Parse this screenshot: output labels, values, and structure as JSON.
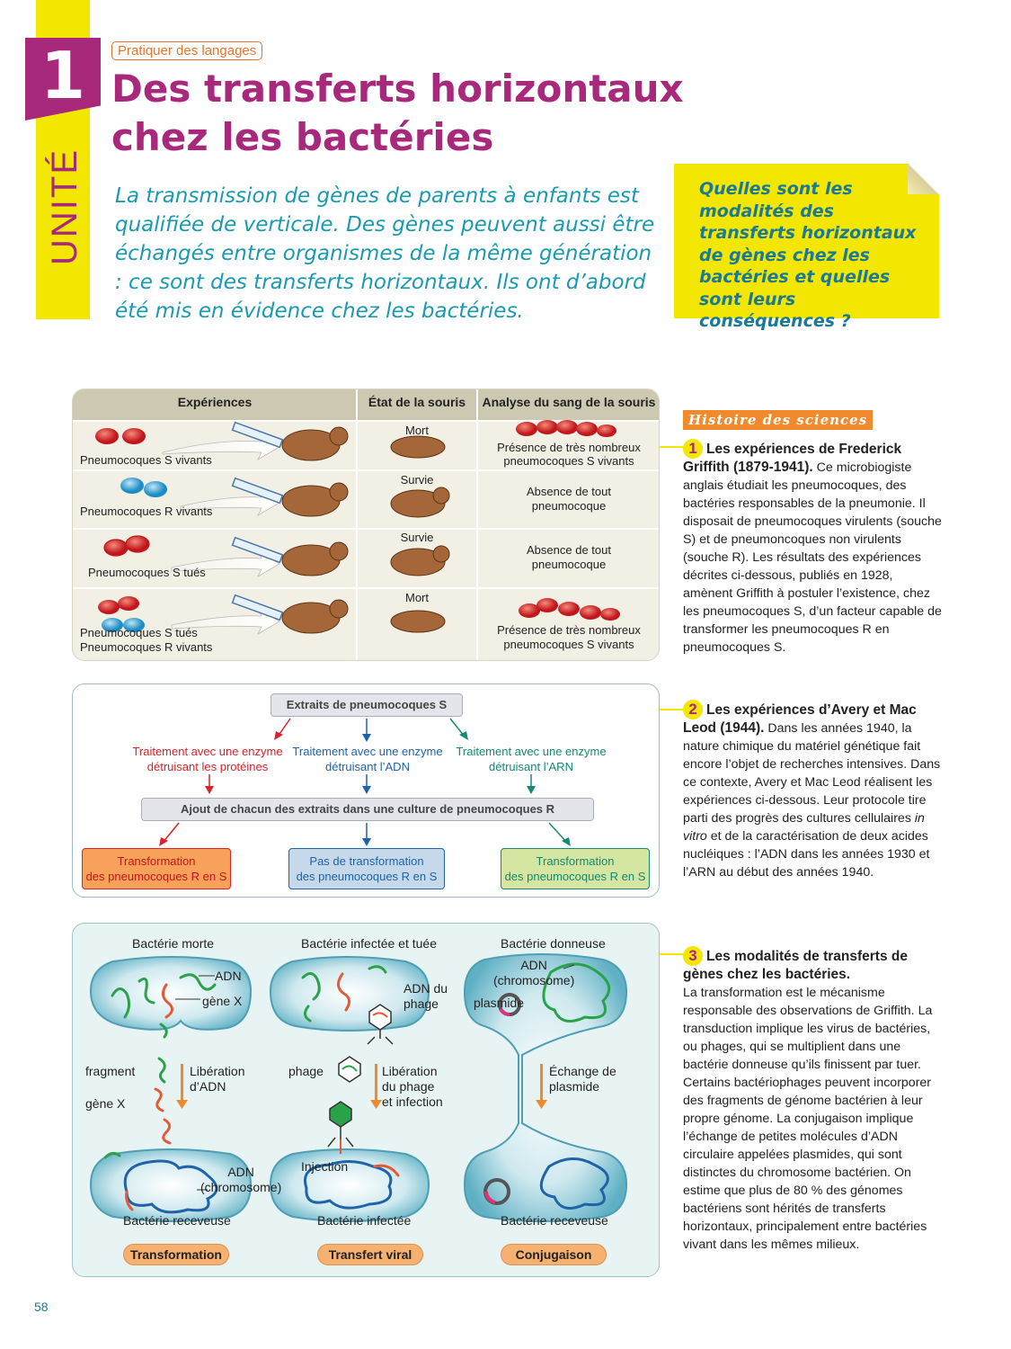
{
  "header": {
    "unit_number": "1",
    "unit_word": "UNITÉ",
    "badge": "Pratiquer des langages",
    "title_line1": "Des transferts horizontaux",
    "title_line2": "chez les bactéries"
  },
  "intro": "La transmission de gènes de parents à enfants est qualifiée de verticale. Des gènes peuvent aussi être échangés entre organismes de la même génération : ce sont des transferts horizontaux. Ils ont d’abord été mis en évidence chez les bactéries.",
  "question": "Quelles sont les modalités des transferts horizontaux de gènes chez les bactéries et quelles sont leurs conséquences ?",
  "table": {
    "headers": [
      "Expériences",
      "État de la souris",
      "Analyse du sang de la souris"
    ],
    "rows": [
      {
        "exp": "Pneumocoques S vivants",
        "exp2": "",
        "state": "Mort",
        "analysis1": "Présence de très nombreux",
        "analysis2": "pneumocoques S vivants"
      },
      {
        "exp": "Pneumocoques R vivants",
        "exp2": "",
        "state": "Survie",
        "analysis1": "Absence de tout",
        "analysis2": "pneumocoque"
      },
      {
        "exp": "Pneumocoques S tués",
        "exp2": "",
        "state": "Survie",
        "analysis1": "Absence de tout",
        "analysis2": "pneumocoque"
      },
      {
        "exp": "Pneumocoques S tués",
        "exp2": "Pneumocoques R vivants",
        "state": "Mort",
        "analysis1": "Présence de très nombreux",
        "analysis2": "pneumocoques S vivants"
      }
    ]
  },
  "doc2": {
    "top": "Extraits de pneumocoques S",
    "t1a": "Traitement avec une enzyme",
    "t1b": "détruisant les protéines",
    "t2a": "Traitement avec une enzyme",
    "t2b": "détruisant l’ADN",
    "t3a": "Traitement avec une enzyme",
    "t3b": "détruisant l’ARN",
    "middle": "Ajout de chacun des extraits dans une culture de pneumocoques R",
    "r1a": "Transformation",
    "r1b": "des pneumocoques R en S",
    "r2a": "Pas de transformation",
    "r2b": "des pneumocoques R en S",
    "r3a": "Transformation",
    "r3b": "des pneumocoques R en S",
    "colors": {
      "red": "#d8232a",
      "blue": "#1f63a8",
      "green": "#138a73"
    }
  },
  "doc3": {
    "c1_title": "Bactérie morte",
    "c1_adn": "ADN",
    "c1_gene": "gène X",
    "c1_fragment": "fragment",
    "c1_genex2": "gène X",
    "c1_lib1": "Libération",
    "c1_lib2": "d’ADN",
    "c1_adn2": "ADN",
    "c1_chrom": "(chromosome)",
    "c1_bottom": "Bactérie receveuse",
    "c1_pill": "Transformation",
    "c2_title": "Bactérie infectée et tuée",
    "c2_adn1": "ADN du",
    "c2_adn2": "phage",
    "c2_phage": "phage",
    "c2_lib1": "Libération",
    "c2_lib2": "du phage",
    "c2_lib3": "et infection",
    "c2_inj": "Injection",
    "c2_bottom": "Bactérie infectée",
    "c2_pill": "Transfert viral",
    "c3_title": "Bactérie donneuse",
    "c3_adn": "ADN",
    "c3_chrom": "(chromosome)",
    "c3_plasmide": "plasmide",
    "c3_ech1": "Échange de",
    "c3_ech2": "plasmide",
    "c3_bottom": "Bactérie receveuse",
    "c3_pill": "Conjugaison"
  },
  "sidebar": {
    "badge": "Histoire des sciences",
    "d1_num": "1",
    "d1_title": "Les expériences de Frederick Griffith (1879-1941).",
    "d1_text": "Ce microbiogiste anglais étudiait les pneumocoques, des bactéries responsables de la pneumonie. Il disposait de pneumocoques virulents (souche S) et de pneumoncoques non virulents (souche R). Les résultats des expériences décrites ci-dessous, publiés en 1928, amènent Griffith à postuler l’existence, chez les pneumocoques S, d’un facteur capable de transformer les pneumocoques R en pneumocoques S.",
    "d2_num": "2",
    "d2_title": "Les expériences d’Avery et Mac Leod (1944).",
    "d2_text_a": "Dans les années 1940, la nature chimique du matériel génétique fait encore l’objet de recherches intensives. Dans ce contexte, Avery et Mac Leod réalisent les expériences ci-dessous. Leur protocole tire parti des progrès des cultures cellulaires",
    "d2_text_it": "in vitro",
    "d2_text_b": "et de la caractérisation de deux acides nucléiques : l’ADN dans les années 1930 et l’ARN au début des années 1940.",
    "d3_num": "3",
    "d3_title": "Les modalités de transferts de gènes chez les bactéries.",
    "d3_text": "La transformation est le mécanisme responsable des observations de Griffith. La transduction implique les virus de bactéries, ou phages, qui se multiplient dans une bactérie donneuse qu’ils finissent par tuer. Certains bactériophages peuvent incorporer des fragments de génome bactérien à leur propre génome. La conjugaison implique l’échange de petites molécules d’ADN circulaire appelées plasmides, qui sont distinctes du chromosome bactérien. On estime que plus de 80 % des génomes bactériens sont hérités de transferts horizontaux, principalement entre bactéries vivant dans les mêmes milieux."
  },
  "page_number": "58"
}
